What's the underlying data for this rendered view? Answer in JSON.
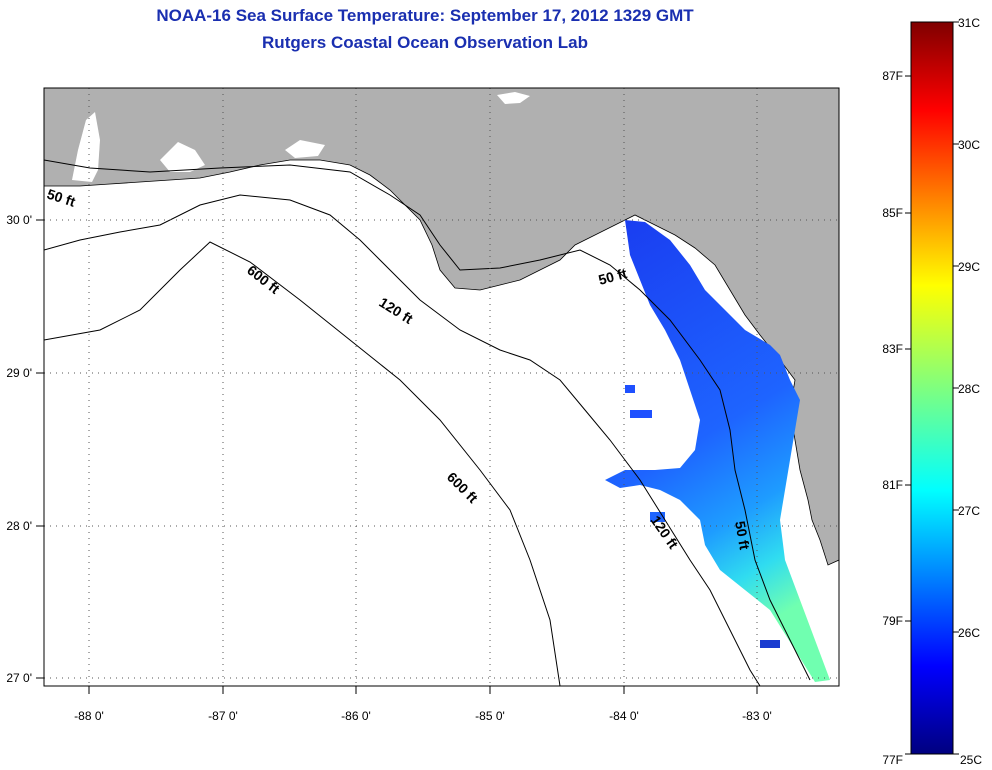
{
  "title": {
    "line1": "NOAA-16 Sea Surface Temperature:  September 17, 2012 1329 GMT",
    "line2": "Rutgers Coastal Ocean Observation Lab"
  },
  "map": {
    "lon_labels": [
      "-88 0'",
      "-87 0'",
      "-86 0'",
      "-85 0'",
      "-84 0'",
      "-83 0'"
    ],
    "lat_labels": [
      "30 0'",
      "29 0'",
      "28 0'",
      "27 0'"
    ],
    "contour_labels": {
      "a": "50 ft",
      "b": "600 ft",
      "c": "120 ft",
      "d": "50 ft",
      "e": "600 ft",
      "f": "120 ft",
      "g": "50 ft"
    }
  },
  "colorbar": {
    "celsius": [
      "31C",
      "30C",
      "29C",
      "28C",
      "27C",
      "26C",
      "25C"
    ],
    "fahrenheit": [
      "87F",
      "85F",
      "83F",
      "81F",
      "79F",
      "77F"
    ]
  },
  "colors": {
    "title": "#1a2fb0",
    "land": "#b0b0b0",
    "sst_cold": "#1e3cff",
    "sst_warm": "#40ffc0"
  }
}
